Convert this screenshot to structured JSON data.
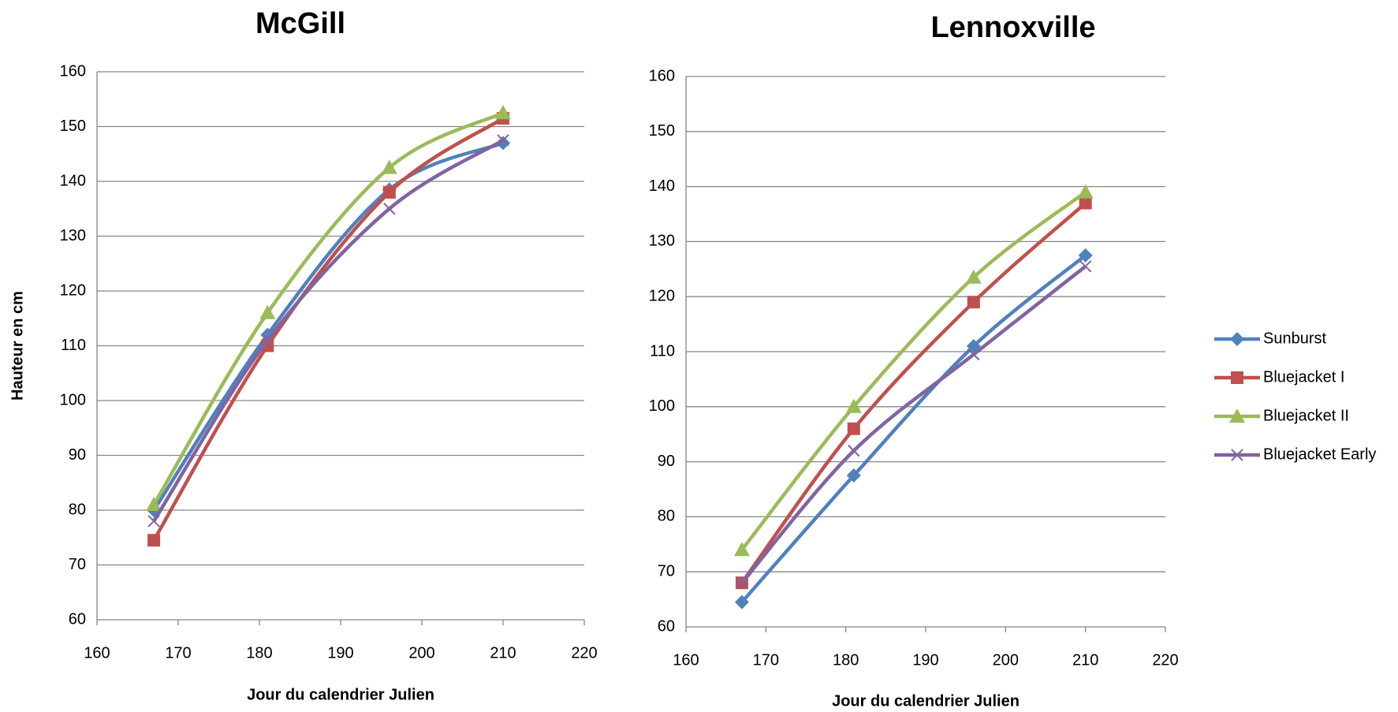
{
  "chart_data": [
    {
      "type": "line",
      "title": "McGill",
      "x_label": "Jour du calendrier Julien",
      "y_label": "Hauteur en cm",
      "x": [
        167,
        181,
        196,
        210
      ],
      "series": [
        {
          "color": "#4f81bd",
          "marker": "diamond",
          "values": [
            80,
            112,
            138.5,
            147
          ]
        },
        {
          "color": "#c0504d",
          "marker": "square",
          "values": [
            74.5,
            110,
            138,
            151.5
          ]
        },
        {
          "color": "#9bbb59",
          "marker": "triangle",
          "values": [
            81,
            116,
            142.5,
            152.5
          ]
        },
        {
          "color": "#8064a2",
          "marker": "x",
          "values": [
            78,
            111,
            135,
            147.5
          ]
        }
      ],
      "xlim": [
        160,
        220
      ],
      "xticks": [
        160,
        170,
        180,
        190,
        200,
        210,
        220
      ],
      "ylim": [
        60,
        160
      ],
      "yticks": [
        60,
        70,
        80,
        90,
        100,
        110,
        120,
        130,
        140,
        150,
        160
      ],
      "grid": true
    },
    {
      "type": "line",
      "title": "Lennoxville",
      "x_label": "Jour du calendrier Julien",
      "x": [
        167,
        181,
        196,
        210
      ],
      "series": [
        {
          "name": "Sunburst",
          "color": "#4f81bd",
          "marker": "diamond",
          "values": [
            64.5,
            87.5,
            111,
            127.5
          ]
        },
        {
          "name": "Bluejacket I",
          "color": "#c0504d",
          "marker": "square",
          "values": [
            68,
            96,
            119,
            137
          ]
        },
        {
          "name": "Bluejacket II",
          "color": "#9bbb59",
          "marker": "triangle",
          "values": [
            74,
            100,
            123.5,
            139
          ]
        },
        {
          "name": "Bluejacket Early",
          "color": "#8064a2",
          "marker": "x",
          "values": [
            68,
            92,
            109.5,
            125.5
          ]
        }
      ],
      "xlim": [
        160,
        220
      ],
      "xticks": [
        160,
        170,
        180,
        190,
        200,
        210,
        220
      ],
      "ylim": [
        60,
        160
      ],
      "yticks": [
        60,
        70,
        80,
        90,
        100,
        110,
        120,
        130,
        140,
        150,
        160
      ],
      "grid": true,
      "legend": "right"
    }
  ]
}
